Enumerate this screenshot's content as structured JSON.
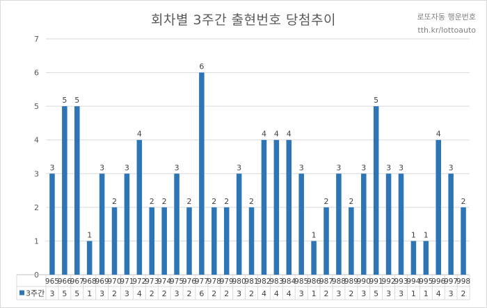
{
  "title": "회차별 3주간 출현번호 당첨추이",
  "watermark": {
    "line1": "로또자동 행운번호",
    "line2": "tth.kr/lottoauto"
  },
  "colors": {
    "bar": "#2e75b6",
    "grid": "#d9d9d9",
    "axis": "#bfbfbf",
    "text": "#595959"
  },
  "chart_data": {
    "type": "bar",
    "title": "회차별 3주간 출현번호 당첨추이",
    "xlabel": "",
    "ylabel": "",
    "ylim": [
      0,
      7
    ],
    "yticks": [
      0,
      1,
      2,
      3,
      4,
      5,
      6,
      7
    ],
    "grid": true,
    "legend": "bottom-left",
    "categories": [
      "965",
      "966",
      "967",
      "968",
      "969",
      "970",
      "971",
      "972",
      "973",
      "974",
      "975",
      "976",
      "977",
      "978",
      "979",
      "980",
      "981",
      "982",
      "983",
      "984",
      "985",
      "986",
      "987",
      "988",
      "989",
      "990",
      "991",
      "992",
      "993",
      "994",
      "995",
      "996",
      "997",
      "998"
    ],
    "series": [
      {
        "name": "3주간",
        "values": [
          3,
          5,
          5,
          1,
          3,
          2,
          3,
          4,
          2,
          2,
          3,
          2,
          6,
          2,
          2,
          3,
          2,
          4,
          4,
          4,
          3,
          1,
          2,
          3,
          2,
          3,
          5,
          3,
          3,
          1,
          1,
          4,
          3,
          2
        ]
      }
    ]
  }
}
